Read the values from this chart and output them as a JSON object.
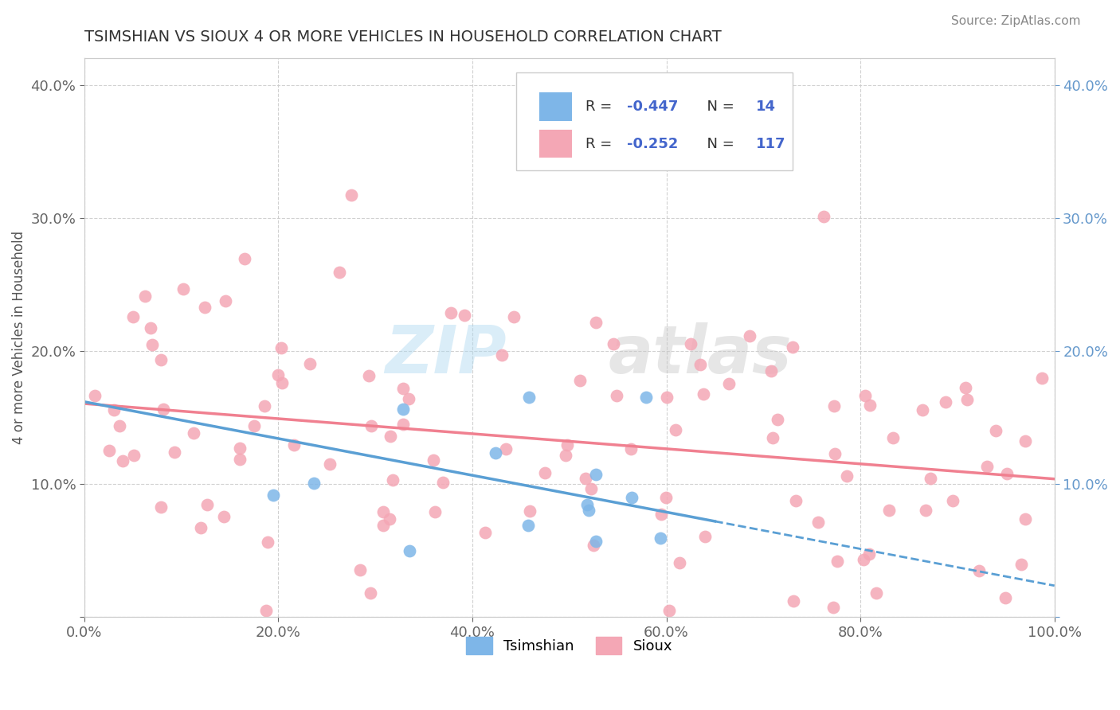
{
  "title": "TSIMSHIAN VS SIOUX 4 OR MORE VEHICLES IN HOUSEHOLD CORRELATION CHART",
  "source": "Source: ZipAtlas.com",
  "ylabel": "4 or more Vehicles in Household",
  "legend_label_1": "Tsimshian",
  "legend_label_2": "Sioux",
  "color_tsimshian": "#7EB6E8",
  "color_sioux": "#F4A7B5",
  "line_color_tsimshian": "#5A9FD4",
  "line_color_sioux": "#F08090",
  "r1": "-0.447",
  "n1": "14",
  "r2": "-0.252",
  "n2": "117",
  "watermark_zip": "ZIP",
  "watermark_atlas": "atlas",
  "xlim": [
    0.0,
    1.0
  ],
  "ylim": [
    0.0,
    0.42
  ],
  "xticks": [
    0.0,
    0.2,
    0.4,
    0.6,
    0.8,
    1.0
  ],
  "yticks": [
    0.0,
    0.1,
    0.2,
    0.3,
    0.4
  ],
  "xtick_labels": [
    "0.0%",
    "20.0%",
    "40.0%",
    "60.0%",
    "80.0%",
    "100.0%"
  ],
  "ytick_labels": [
    "",
    "10.0%",
    "20.0%",
    "30.0%",
    "40.0%"
  ],
  "background_color": "#FFFFFF",
  "grid_color": "#CCCCCC",
  "r_color": "#4466CC",
  "n_color": "#4466CC",
  "right_axis_color": "#6699CC"
}
